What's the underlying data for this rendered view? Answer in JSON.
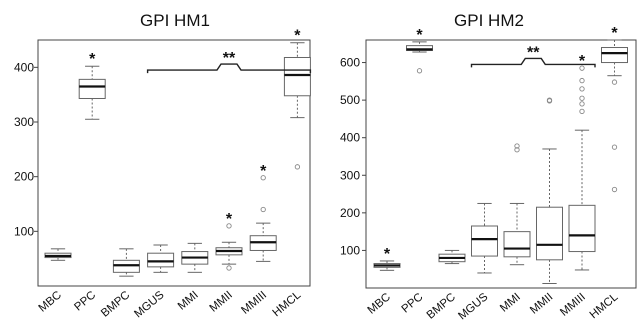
{
  "chart_data": [
    {
      "type": "box",
      "title": "GPI HM1",
      "categories": [
        "MBC",
        "PPC",
        "BMPC",
        "MGUS",
        "MMI",
        "MMII",
        "MMIII",
        "HMCL"
      ],
      "yticks": [
        100,
        200,
        300,
        400
      ],
      "ylim": [
        0,
        450
      ],
      "boxes": [
        {
          "category": "MBC",
          "min": 47,
          "q1": 52,
          "median": 55,
          "q3": 60,
          "max": 68,
          "outliers": [],
          "marker": ""
        },
        {
          "category": "PPC",
          "min": 305,
          "q1": 343,
          "median": 365,
          "q3": 378,
          "max": 402,
          "outliers": [],
          "marker": "*"
        },
        {
          "category": "BMPC",
          "min": 18,
          "q1": 25,
          "median": 38,
          "q3": 47,
          "max": 68,
          "outliers": [],
          "marker": ""
        },
        {
          "category": "MGUS",
          "min": 25,
          "q1": 35,
          "median": 45,
          "q3": 60,
          "max": 75,
          "outliers": [],
          "marker": ""
        },
        {
          "category": "MMI",
          "min": 25,
          "q1": 40,
          "median": 52,
          "q3": 63,
          "max": 78,
          "outliers": [],
          "marker": ""
        },
        {
          "category": "MMII",
          "min": 40,
          "q1": 57,
          "median": 64,
          "q3": 70,
          "max": 80,
          "outliers": [
            33,
            110
          ],
          "marker": "*"
        },
        {
          "category": "MMIII",
          "min": 45,
          "q1": 65,
          "median": 80,
          "q3": 92,
          "max": 115,
          "outliers": [
            140,
            198
          ],
          "marker": "*"
        },
        {
          "category": "HMCL",
          "min": 308,
          "q1": 348,
          "median": 386,
          "q3": 418,
          "max": 445,
          "outliers": [
            218
          ],
          "marker": "*"
        }
      ],
      "bracket": {
        "from": "MGUS",
        "to": "HMCL",
        "y": 395,
        "label": "**"
      }
    },
    {
      "type": "box",
      "title": "GPI HM2",
      "categories": [
        "MBC",
        "PPC",
        "BMPC",
        "MGUS",
        "MMI",
        "MMII",
        "MMIII",
        "HMCL"
      ],
      "yticks": [
        100,
        200,
        300,
        400,
        500,
        600
      ],
      "ylim": [
        0,
        660
      ],
      "boxes": [
        {
          "category": "MBC",
          "min": 47,
          "q1": 55,
          "median": 60,
          "q3": 65,
          "max": 72,
          "outliers": [],
          "marker": "*"
        },
        {
          "category": "PPC",
          "min": 628,
          "q1": 632,
          "median": 635,
          "q3": 645,
          "max": 655,
          "outliers": [
            578
          ],
          "marker": "*"
        },
        {
          "category": "BMPC",
          "min": 65,
          "q1": 70,
          "median": 80,
          "q3": 90,
          "max": 100,
          "outliers": [],
          "marker": ""
        },
        {
          "category": "MGUS",
          "min": 40,
          "q1": 85,
          "median": 130,
          "q3": 165,
          "max": 225,
          "outliers": [],
          "marker": ""
        },
        {
          "category": "MMI",
          "min": 62,
          "q1": 83,
          "median": 105,
          "q3": 150,
          "max": 225,
          "outliers": [
            368,
            378
          ],
          "marker": ""
        },
        {
          "category": "MMII",
          "min": 12,
          "q1": 75,
          "median": 115,
          "q3": 215,
          "max": 370,
          "outliers": [
            498,
            500
          ],
          "marker": ""
        },
        {
          "category": "MMIII",
          "min": 48,
          "q1": 97,
          "median": 140,
          "q3": 220,
          "max": 420,
          "outliers": [
            470,
            490,
            505,
            530,
            552,
            585
          ],
          "marker": "*"
        },
        {
          "category": "HMCL",
          "min": 565,
          "q1": 600,
          "median": 625,
          "q3": 640,
          "max": 660,
          "outliers": [
            262,
            375,
            548
          ],
          "marker": "*"
        }
      ],
      "bracket": {
        "from": "MGUS",
        "to": "MMIII",
        "y": 595,
        "label": "**"
      }
    }
  ]
}
